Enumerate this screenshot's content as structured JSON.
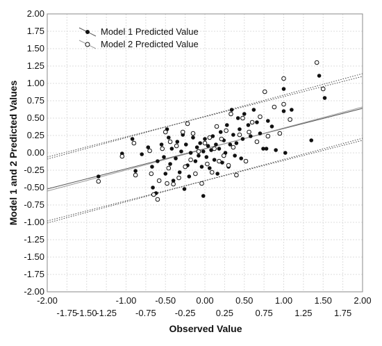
{
  "chart_data": {
    "type": "scatter",
    "xlabel": "Observed Value",
    "ylabel": "Model 1 and 2 Predicted Values",
    "xlim": [
      -2.0,
      2.0
    ],
    "ylim": [
      -2.0,
      2.0
    ],
    "x_ticks_upper": [
      "-2.00",
      "-1.00",
      "-0.50",
      "0.00",
      "0.50",
      "1.00",
      "1.50",
      "2.00"
    ],
    "x_ticks_lower": [
      "-1.75",
      "-1.50",
      "-1.25",
      "-0.75",
      "-0.25",
      "0.25",
      "0.75",
      "1.25",
      "1.75"
    ],
    "y_ticks": [
      "2.00",
      "1.75",
      "1.50",
      "1.25",
      "1.00",
      "0.75",
      "0.50",
      "0.25",
      "0.00",
      "-0.25",
      "-0.50",
      "-0.75",
      "-1.00",
      "-1.25",
      "-1.50",
      "-1.75",
      "-2.00"
    ],
    "grid": true,
    "legend_position": "top-left",
    "series": [
      {
        "name": "Model 1 Predicted Value",
        "marker": "filled-circle",
        "color": "#111111",
        "points": [
          [
            -1.35,
            -0.34
          ],
          [
            -1.05,
            -0.01
          ],
          [
            -0.92,
            0.2
          ],
          [
            -0.88,
            -0.26
          ],
          [
            -0.8,
            -0.02
          ],
          [
            -0.72,
            0.08
          ],
          [
            -0.67,
            -0.2
          ],
          [
            -0.66,
            -0.5
          ],
          [
            -0.62,
            -0.58
          ],
          [
            -0.6,
            -0.12
          ],
          [
            -0.55,
            0.12
          ],
          [
            -0.52,
            -0.06
          ],
          [
            -0.5,
            -0.3
          ],
          [
            -0.48,
            0.34
          ],
          [
            -0.46,
            0.22
          ],
          [
            -0.44,
            -0.16
          ],
          [
            -0.42,
            0.06
          ],
          [
            -0.4,
            -0.4
          ],
          [
            -0.37,
            -0.08
          ],
          [
            -0.35,
            0.16
          ],
          [
            -0.32,
            -0.28
          ],
          [
            -0.3,
            0.02
          ],
          [
            -0.28,
            0.26
          ],
          [
            -0.26,
            -0.52
          ],
          [
            -0.24,
            0.12
          ],
          [
            -0.22,
            -0.18
          ],
          [
            -0.2,
            -0.34
          ],
          [
            -0.18,
            0.0
          ],
          [
            -0.15,
            0.22
          ],
          [
            -0.12,
            -0.12
          ],
          [
            -0.1,
            0.08
          ],
          [
            -0.08,
            -0.04
          ],
          [
            -0.06,
            0.14
          ],
          [
            -0.04,
            -0.2
          ],
          [
            -0.02,
            0.02
          ],
          [
            -0.02,
            -0.62
          ],
          [
            0.0,
            0.2
          ],
          [
            0.02,
            -0.06
          ],
          [
            0.04,
            0.1
          ],
          [
            0.06,
            -0.22
          ],
          [
            0.08,
            0.04
          ],
          [
            0.1,
            0.24
          ],
          [
            0.12,
            -0.1
          ],
          [
            0.14,
            0.12
          ],
          [
            0.16,
            -0.3
          ],
          [
            0.18,
            0.06
          ],
          [
            0.2,
            0.3
          ],
          [
            0.22,
            -0.14
          ],
          [
            0.24,
            0.18
          ],
          [
            0.26,
            0.0
          ],
          [
            0.28,
            0.4
          ],
          [
            0.3,
            -0.2
          ],
          [
            0.32,
            0.12
          ],
          [
            0.34,
            0.62
          ],
          [
            0.36,
            0.26
          ],
          [
            0.38,
            -0.04
          ],
          [
            0.4,
            0.14
          ],
          [
            0.42,
            0.5
          ],
          [
            0.44,
            0.34
          ],
          [
            0.46,
            -0.08
          ],
          [
            0.48,
            0.2
          ],
          [
            0.5,
            0.56
          ],
          [
            0.55,
            0.4
          ],
          [
            0.58,
            0.24
          ],
          [
            0.62,
            0.62
          ],
          [
            0.66,
            0.44
          ],
          [
            0.7,
            0.28
          ],
          [
            0.74,
            0.06
          ],
          [
            0.78,
            0.06
          ],
          [
            0.8,
            0.46
          ],
          [
            0.85,
            0.38
          ],
          [
            0.9,
            0.04
          ],
          [
            1.0,
            0.92
          ],
          [
            1.0,
            0.6
          ],
          [
            1.02,
            0.0
          ],
          [
            1.1,
            0.62
          ],
          [
            1.35,
            0.18
          ],
          [
            1.45,
            1.11
          ],
          [
            1.52,
            0.79
          ]
        ]
      },
      {
        "name": "Model 2 Predicted Value",
        "marker": "open-circle",
        "color": "#111111",
        "points": [
          [
            -1.35,
            -0.41
          ],
          [
            -1.05,
            -0.05
          ],
          [
            -0.9,
            0.14
          ],
          [
            -0.88,
            -0.32
          ],
          [
            -0.7,
            0.03
          ],
          [
            -0.68,
            -0.3
          ],
          [
            -0.65,
            -0.6
          ],
          [
            -0.6,
            -0.67
          ],
          [
            -0.58,
            -0.4
          ],
          [
            -0.54,
            0.06
          ],
          [
            -0.5,
            0.3
          ],
          [
            -0.48,
            -0.44
          ],
          [
            -0.46,
            -0.22
          ],
          [
            -0.44,
            0.16
          ],
          [
            -0.4,
            -0.45
          ],
          [
            -0.36,
            0.1
          ],
          [
            -0.33,
            -0.36
          ],
          [
            -0.28,
            0.3
          ],
          [
            -0.25,
            -0.2
          ],
          [
            -0.22,
            0.42
          ],
          [
            -0.18,
            -0.1
          ],
          [
            -0.15,
            0.28
          ],
          [
            -0.12,
            -0.3
          ],
          [
            -0.08,
            0.02
          ],
          [
            -0.04,
            -0.44
          ],
          [
            0.0,
            0.14
          ],
          [
            0.03,
            -0.16
          ],
          [
            0.06,
            0.22
          ],
          [
            0.09,
            -0.28
          ],
          [
            0.12,
            0.06
          ],
          [
            0.15,
            0.38
          ],
          [
            0.18,
            -0.12
          ],
          [
            0.21,
            0.2
          ],
          [
            0.24,
            -0.04
          ],
          [
            0.27,
            0.32
          ],
          [
            0.3,
            -0.18
          ],
          [
            0.33,
            0.56
          ],
          [
            0.36,
            0.08
          ],
          [
            0.4,
            -0.32
          ],
          [
            0.44,
            0.26
          ],
          [
            0.48,
            0.5
          ],
          [
            0.52,
            -0.12
          ],
          [
            0.56,
            0.3
          ],
          [
            0.6,
            0.44
          ],
          [
            0.66,
            0.16
          ],
          [
            0.7,
            0.52
          ],
          [
            0.76,
            0.88
          ],
          [
            0.8,
            0.24
          ],
          [
            0.88,
            0.66
          ],
          [
            0.95,
            0.28
          ],
          [
            1.0,
            0.7
          ],
          [
            1.0,
            1.07
          ],
          [
            1.08,
            0.48
          ],
          [
            1.42,
            1.3
          ],
          [
            1.5,
            0.92
          ]
        ]
      }
    ],
    "fit_lines": [
      {
        "series": "Model 1 Predicted Value",
        "color": "#555555",
        "x": [
          -2.0,
          2.0
        ],
        "y": [
          -0.52,
          0.64
        ]
      },
      {
        "series": "Model 2 Predicted Value",
        "color": "#999999",
        "x": [
          -2.0,
          2.0
        ],
        "y": [
          -0.55,
          0.66
        ]
      }
    ],
    "band_lines": [
      {
        "style": "dotted",
        "x": [
          -2.0,
          2.0
        ],
        "y": [
          -0.06,
          1.1
        ]
      },
      {
        "style": "dotted",
        "x": [
          -2.0,
          2.0
        ],
        "y": [
          -0.09,
          1.14
        ]
      },
      {
        "style": "dotted",
        "x": [
          -2.0,
          2.0
        ],
        "y": [
          -0.98,
          0.18
        ]
      },
      {
        "style": "dotted",
        "x": [
          -2.0,
          2.0
        ],
        "y": [
          -1.01,
          0.21
        ]
      }
    ]
  }
}
